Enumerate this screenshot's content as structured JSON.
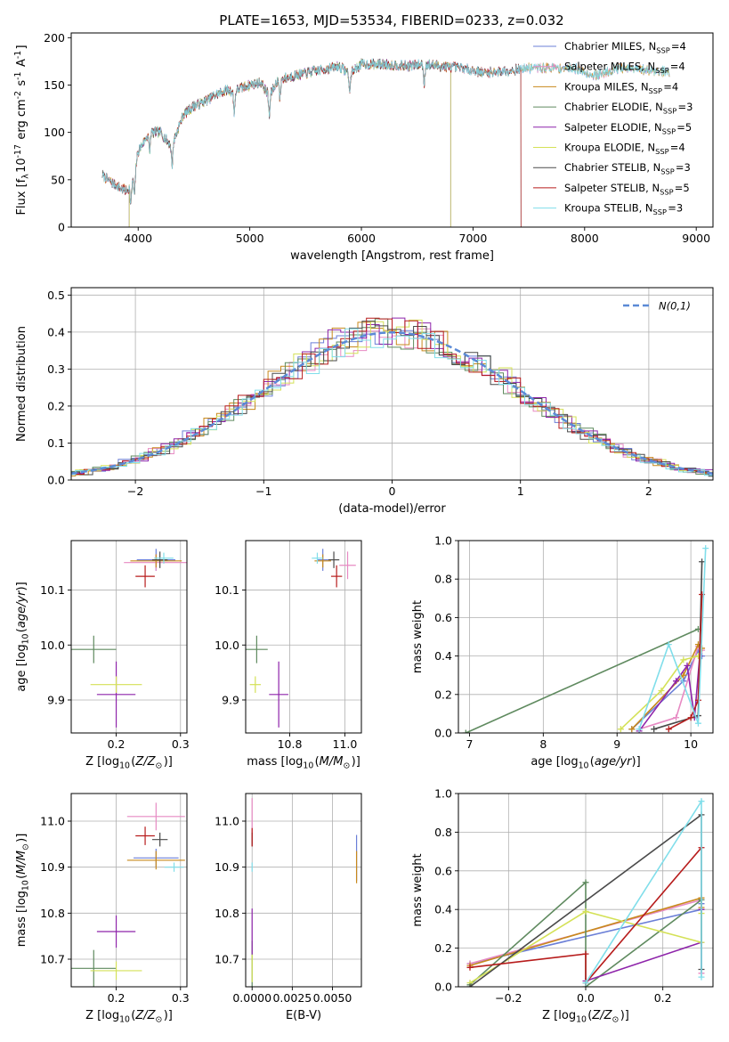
{
  "figure": {
    "title": "PLATE=1653, MJD=53534, FIBERID=0233, z=0.032"
  },
  "legend_labels": [
    "Chabrier MILES, N$_{SSP}$=4",
    "Salpeter MILES, N$_{SSP}$=4",
    "Kroupa MILES, N$_{SSP}$=4",
    "Chabrier ELODIE, N$_{SSP}$=3",
    "Salpeter ELODIE, N$_{SSP}$=5",
    "Kroupa ELODIE, N$_{SSP}$=4",
    "Chabrier STELIB, N$_{SSP}$=3",
    "Salpeter STELIB, N$_{SSP}$=5",
    "Kroupa STELIB, N$_{SSP}$=3"
  ],
  "chart_data": [
    {
      "id": "spectrum",
      "type": "line",
      "xlabel": "wavelength [Angstrom, rest frame]",
      "ylabel": "Flux [f$_\\lambda$10$^{-17}$ erg cm$^{-2}$ s$^{-1}$ A$^{-1}$]",
      "xlim": [
        3400,
        9150
      ],
      "ylim": [
        0,
        205
      ],
      "xticks": [
        4000,
        5000,
        6000,
        7000,
        8000,
        9000
      ],
      "yticks": [
        0,
        50,
        100,
        150,
        200
      ],
      "grid": false,
      "legend_position": "right",
      "series_names": [
        "Chabrier MILES, N$_{SSP}$=4",
        "Salpeter MILES, N$_{SSP}$=4",
        "Kroupa MILES, N$_{SSP}$=4",
        "Chabrier ELODIE, N$_{SSP}$=3",
        "Salpeter ELODIE, N$_{SSP}$=5",
        "Kroupa ELODIE, N$_{SSP}$=4",
        "Chabrier STELIB, N$_{SSP}$=3",
        "Salpeter STELIB, N$_{SSP}$=5",
        "Kroupa STELIB, N$_{SSP}$=3"
      ],
      "wavelength_coverage": [
        [
          3680,
          8760
        ],
        [
          3680,
          8760
        ],
        [
          3680,
          8760
        ],
        [
          3920,
          6800
        ],
        [
          3920,
          6800
        ],
        [
          3920,
          6800
        ],
        [
          3680,
          7430
        ],
        [
          3680,
          7430
        ],
        [
          3680,
          8760
        ]
      ],
      "continuum_nodes": {
        "x": [
          3680,
          3750,
          3830,
          3900,
          3960,
          4000,
          4100,
          4200,
          4300,
          4400,
          4500,
          4600,
          4700,
          4800,
          4860,
          4900,
          5000,
          5100,
          5175,
          5250,
          5400,
          5600,
          5800,
          5895,
          6000,
          6200,
          6400,
          6563,
          6700,
          6900,
          7100,
          7300,
          7500,
          7700,
          7900,
          8100,
          8300,
          8500,
          8760
        ],
        "y": [
          55,
          48,
          42,
          38,
          50,
          80,
          100,
          100,
          85,
          118,
          128,
          133,
          140,
          145,
          142,
          146,
          150,
          153,
          138,
          155,
          160,
          165,
          170,
          162,
          172,
          172,
          170,
          172,
          170,
          168,
          163,
          165,
          168,
          168,
          168,
          160,
          168,
          166,
          164
        ]
      }
    },
    {
      "id": "residuals",
      "type": "line",
      "xlabel": "(data-model)/error",
      "ylabel": "Normed distribution",
      "xlim": [
        -2.5,
        2.5
      ],
      "ylim": [
        0,
        0.52
      ],
      "xticks": [
        -2,
        -1,
        0,
        1,
        2
      ],
      "yticks": [
        0.0,
        0.1,
        0.2,
        0.3,
        0.4,
        0.5
      ],
      "grid": true,
      "legend_position": "top-right",
      "reference_curve": {
        "name": "$\\mathcal{N}(0,1)$",
        "mean": 0,
        "sigma": 1
      },
      "histogram_bin_width": 0.1
    },
    {
      "id": "age-vs-Z",
      "type": "scatter",
      "xlabel": "Z [log$_{10}$($Z/Z_\\odot$)]",
      "ylabel": "age  [log$_{10}$($age/yr$)]",
      "xlim": [
        0.13,
        0.31
      ],
      "ylim": [
        9.84,
        10.19
      ],
      "xticks": [
        0.2,
        0.3
      ],
      "yticks": [
        9.9,
        10.0,
        10.1
      ],
      "grid": true,
      "points": [
        {
          "x": 0.262,
          "y": 10.155,
          "xerr": 0.03,
          "yerr": 0.02
        },
        {
          "x": 0.262,
          "y": 10.15,
          "xerr": 0.05,
          "yerr": 0.015
        },
        {
          "x": 0.262,
          "y": 10.153,
          "xerr": 0.04,
          "yerr": 0.012
        },
        {
          "x": 0.165,
          "y": 9.992,
          "xerr": 0.035,
          "yerr": 0.025
        },
        {
          "x": 0.2,
          "y": 9.91,
          "xerr": 0.03,
          "yerr": 0.06
        },
        {
          "x": 0.2,
          "y": 9.928,
          "xerr": 0.04,
          "yerr": 0.015
        },
        {
          "x": 0.268,
          "y": 10.155,
          "xerr": 0.012,
          "yerr": 0.015
        },
        {
          "x": 0.245,
          "y": 10.125,
          "xerr": 0.015,
          "yerr": 0.02
        },
        {
          "x": 0.274,
          "y": 10.158,
          "xerr": 0.015,
          "yerr": 0.01
        }
      ]
    },
    {
      "id": "age-vs-mass",
      "type": "scatter",
      "xlabel": "mass [log$_{10}$($M/M_\\odot$)]",
      "ylabel": "",
      "xlim": [
        10.64,
        11.06
      ],
      "ylim": [
        9.84,
        10.19
      ],
      "xticks": [
        10.8,
        11.0
      ],
      "yticks": [
        9.9,
        10.0,
        10.1
      ],
      "grid": true,
      "points": [
        {
          "x": 10.92,
          "y": 10.155,
          "xerr": 0.02,
          "yerr": 0.02
        },
        {
          "x": 11.01,
          "y": 10.145,
          "xerr": 0.03,
          "yerr": 0.025
        },
        {
          "x": 10.92,
          "y": 10.153,
          "xerr": 0.03,
          "yerr": 0.012
        },
        {
          "x": 10.68,
          "y": 9.992,
          "xerr": 0.04,
          "yerr": 0.025
        },
        {
          "x": 10.76,
          "y": 9.91,
          "xerr": 0.035,
          "yerr": 0.06
        },
        {
          "x": 10.675,
          "y": 9.928,
          "xerr": 0.02,
          "yerr": 0.015
        },
        {
          "x": 10.96,
          "y": 10.155,
          "xerr": 0.02,
          "yerr": 0.015
        },
        {
          "x": 10.97,
          "y": 10.125,
          "xerr": 0.02,
          "yerr": 0.02
        },
        {
          "x": 10.9,
          "y": 10.158,
          "xerr": 0.02,
          "yerr": 0.01
        }
      ]
    },
    {
      "id": "mass-weight-vs-age",
      "type": "line",
      "xlabel": "age  [log$_{10}$($age/yr$)]",
      "ylabel": "mass weight",
      "xlim": [
        6.85,
        10.3
      ],
      "ylim": [
        0,
        1.0
      ],
      "xticks": [
        7,
        8,
        9,
        10
      ],
      "yticks": [
        0.0,
        0.2,
        0.4,
        0.6,
        0.8,
        1.0
      ],
      "grid": true,
      "series": [
        {
          "x": [
            9.2,
            9.9,
            10.1,
            10.15
          ],
          "y": [
            0.02,
            0.27,
            0.43,
            0.4
          ]
        },
        {
          "x": [
            9.3,
            9.8,
            10.1,
            10.15
          ],
          "y": [
            0.02,
            0.08,
            0.45,
            0.43
          ]
        },
        {
          "x": [
            9.2,
            9.9,
            10.1,
            10.15
          ],
          "y": [
            0.02,
            0.3,
            0.46,
            0.44
          ]
        },
        {
          "x": [
            6.95,
            10.1
          ],
          "y": [
            0.0,
            0.54
          ]
        },
        {
          "x": [
            9.3,
            9.8,
            9.95,
            10.05,
            10.12
          ],
          "y": [
            0.01,
            0.27,
            0.35,
            0.08,
            0.4
          ]
        },
        {
          "x": [
            9.05,
            9.6,
            9.9,
            10.1
          ],
          "y": [
            0.02,
            0.22,
            0.38,
            0.4
          ]
        },
        {
          "x": [
            9.5,
            10.1,
            10.15
          ],
          "y": [
            0.02,
            0.09,
            0.89
          ]
        },
        {
          "x": [
            9.7,
            10.0,
            10.1,
            10.15
          ],
          "y": [
            0.02,
            0.08,
            0.17,
            0.72
          ]
        },
        {
          "x": [
            9.3,
            9.7,
            10.1,
            10.2
          ],
          "y": [
            0.02,
            0.46,
            0.05,
            0.96
          ]
        }
      ]
    },
    {
      "id": "mass-vs-Z",
      "type": "scatter",
      "xlabel": "Z [log$_{10}$($Z/Z_\\odot$)]",
      "ylabel": "mass [log$_{10}$($M/M_\\odot$)]",
      "xlim": [
        0.13,
        0.31
      ],
      "ylim": [
        10.64,
        11.06
      ],
      "xticks": [
        0.2,
        0.3
      ],
      "yticks": [
        10.7,
        10.8,
        10.9,
        11.0
      ],
      "grid": true,
      "points": [
        {
          "x": 0.262,
          "y": 10.92,
          "xerr": 0.035,
          "yerr": 0.02
        },
        {
          "x": 0.262,
          "y": 11.01,
          "xerr": 0.045,
          "yerr": 0.03
        },
        {
          "x": 0.262,
          "y": 10.915,
          "xerr": 0.045,
          "yerr": 0.02
        },
        {
          "x": 0.165,
          "y": 10.68,
          "xerr": 0.035,
          "yerr": 0.04
        },
        {
          "x": 0.2,
          "y": 10.76,
          "xerr": 0.03,
          "yerr": 0.035
        },
        {
          "x": 0.2,
          "y": 10.675,
          "xerr": 0.04,
          "yerr": 0.02
        },
        {
          "x": 0.268,
          "y": 10.96,
          "xerr": 0.012,
          "yerr": 0.015
        },
        {
          "x": 0.245,
          "y": 10.968,
          "xerr": 0.015,
          "yerr": 0.02
        },
        {
          "x": 0.29,
          "y": 10.9,
          "xerr": 0.015,
          "yerr": 0.01
        }
      ]
    },
    {
      "id": "mass-vs-ebv",
      "type": "scatter",
      "xlabel": "E(B-V)",
      "ylabel": "",
      "xlim": [
        -0.0004,
        0.0068
      ],
      "ylim": [
        10.64,
        11.06
      ],
      "xticks": [
        0.0,
        0.0025,
        0.005
      ],
      "xtick_labels": [
        "0.0000",
        "0.0025",
        "0.0050"
      ],
      "yticks": [
        10.7,
        10.8,
        10.9,
        11.0
      ],
      "grid": true,
      "points": [
        {
          "x": 0.0065,
          "y": 10.92,
          "xerr": 0,
          "yerr": 0.05
        },
        {
          "x": 0.0,
          "y": 11.0,
          "xerr": 0,
          "yerr": 0.05
        },
        {
          "x": 0.0065,
          "y": 10.9,
          "xerr": 0,
          "yerr": 0.035
        },
        {
          "x": 0.0,
          "y": 10.69,
          "xerr": 0,
          "yerr": 0.05
        },
        {
          "x": 0.0,
          "y": 10.76,
          "xerr": 0,
          "yerr": 0.05
        },
        {
          "x": 0.0,
          "y": 10.68,
          "xerr": 0,
          "yerr": 0.03
        },
        {
          "x": 0.0,
          "y": 10.96,
          "xerr": 0,
          "yerr": 0.015
        },
        {
          "x": 0.0,
          "y": 10.965,
          "xerr": 0,
          "yerr": 0.02
        },
        {
          "x": 0.0,
          "y": 10.9,
          "xerr": 0,
          "yerr": 0.01
        }
      ]
    },
    {
      "id": "mass-weight-vs-Z",
      "type": "line",
      "xlabel": "Z [log$_{10}$($Z/Z_\\odot$)]",
      "ylabel": "mass weight",
      "xlim": [
        -0.33,
        0.33
      ],
      "ylim": [
        0,
        1.0
      ],
      "xticks": [
        -0.2,
        0.0,
        0.2
      ],
      "yticks": [
        0.0,
        0.2,
        0.4,
        0.6,
        0.8,
        1.0
      ],
      "grid": true,
      "series": [
        {
          "x": [
            -0.3,
            0.3,
            0.3
          ],
          "y": [
            0.12,
            0.4,
            0.43
          ]
        },
        {
          "x": [
            -0.3,
            0.3,
            0.3
          ],
          "y": [
            0.12,
            0.45,
            0.07
          ]
        },
        {
          "x": [
            -0.3,
            0.3,
            0.3
          ],
          "y": [
            0.11,
            0.46,
            0.41
          ]
        },
        {
          "x": [
            -0.3,
            0.0,
            0.0,
            0.3
          ],
          "y": [
            0.01,
            0.54,
            0.0,
            0.45
          ]
        },
        {
          "x": [
            0.0,
            0.3,
            0.3
          ],
          "y": [
            0.03,
            0.23,
            0.4
          ]
        },
        {
          "x": [
            -0.3,
            0.0,
            0.3,
            0.3
          ],
          "y": [
            0.02,
            0.39,
            0.23,
            0.38
          ]
        },
        {
          "x": [
            -0.3,
            0.3,
            0.3
          ],
          "y": [
            0.0,
            0.89,
            0.09
          ]
        },
        {
          "x": [
            -0.3,
            0.0,
            0.0,
            0.3
          ],
          "y": [
            0.1,
            0.17,
            0.02,
            0.72
          ]
        },
        {
          "x": [
            0.0,
            0.3,
            0.3
          ],
          "y": [
            0.02,
            0.96,
            0.05
          ]
        }
      ]
    }
  ],
  "colors": {
    "series": [
      "#6b7fd7",
      "#e78ac3",
      "#c8891c",
      "#5f8a5f",
      "#8e24aa",
      "#d4e157",
      "#4a4a4a",
      "#b71c1c",
      "#80deea"
    ],
    "reference_curve": "#5b8ad6",
    "grid": "#b0b0b0"
  }
}
